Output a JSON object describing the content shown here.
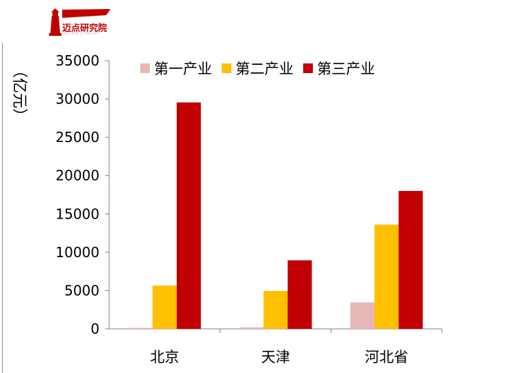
{
  "brand": {
    "name": "迈点研究院",
    "subtitle": "MEADIN ACADEMY",
    "logo_color": "#c00000"
  },
  "chart_data": {
    "type": "bar",
    "categories": [
      "北京",
      "天津",
      "河北省"
    ],
    "series": [
      {
        "name": "第一产业",
        "values": [
          130,
          200,
          3450
        ],
        "color": "#e6b9b8"
      },
      {
        "name": "第二产业",
        "values": [
          5650,
          4950,
          13600
        ],
        "color": "#ffc000"
      },
      {
        "name": "第三产业",
        "values": [
          29550,
          8950,
          18000
        ],
        "color": "#c00000"
      }
    ],
    "ylabel": "（亿元）",
    "ylim": [
      0,
      35000
    ],
    "yticks": [
      "0",
      "5000",
      "10000",
      "15000",
      "20000",
      "25000",
      "30000",
      "35000"
    ],
    "grid": false,
    "legend_position": "top"
  }
}
